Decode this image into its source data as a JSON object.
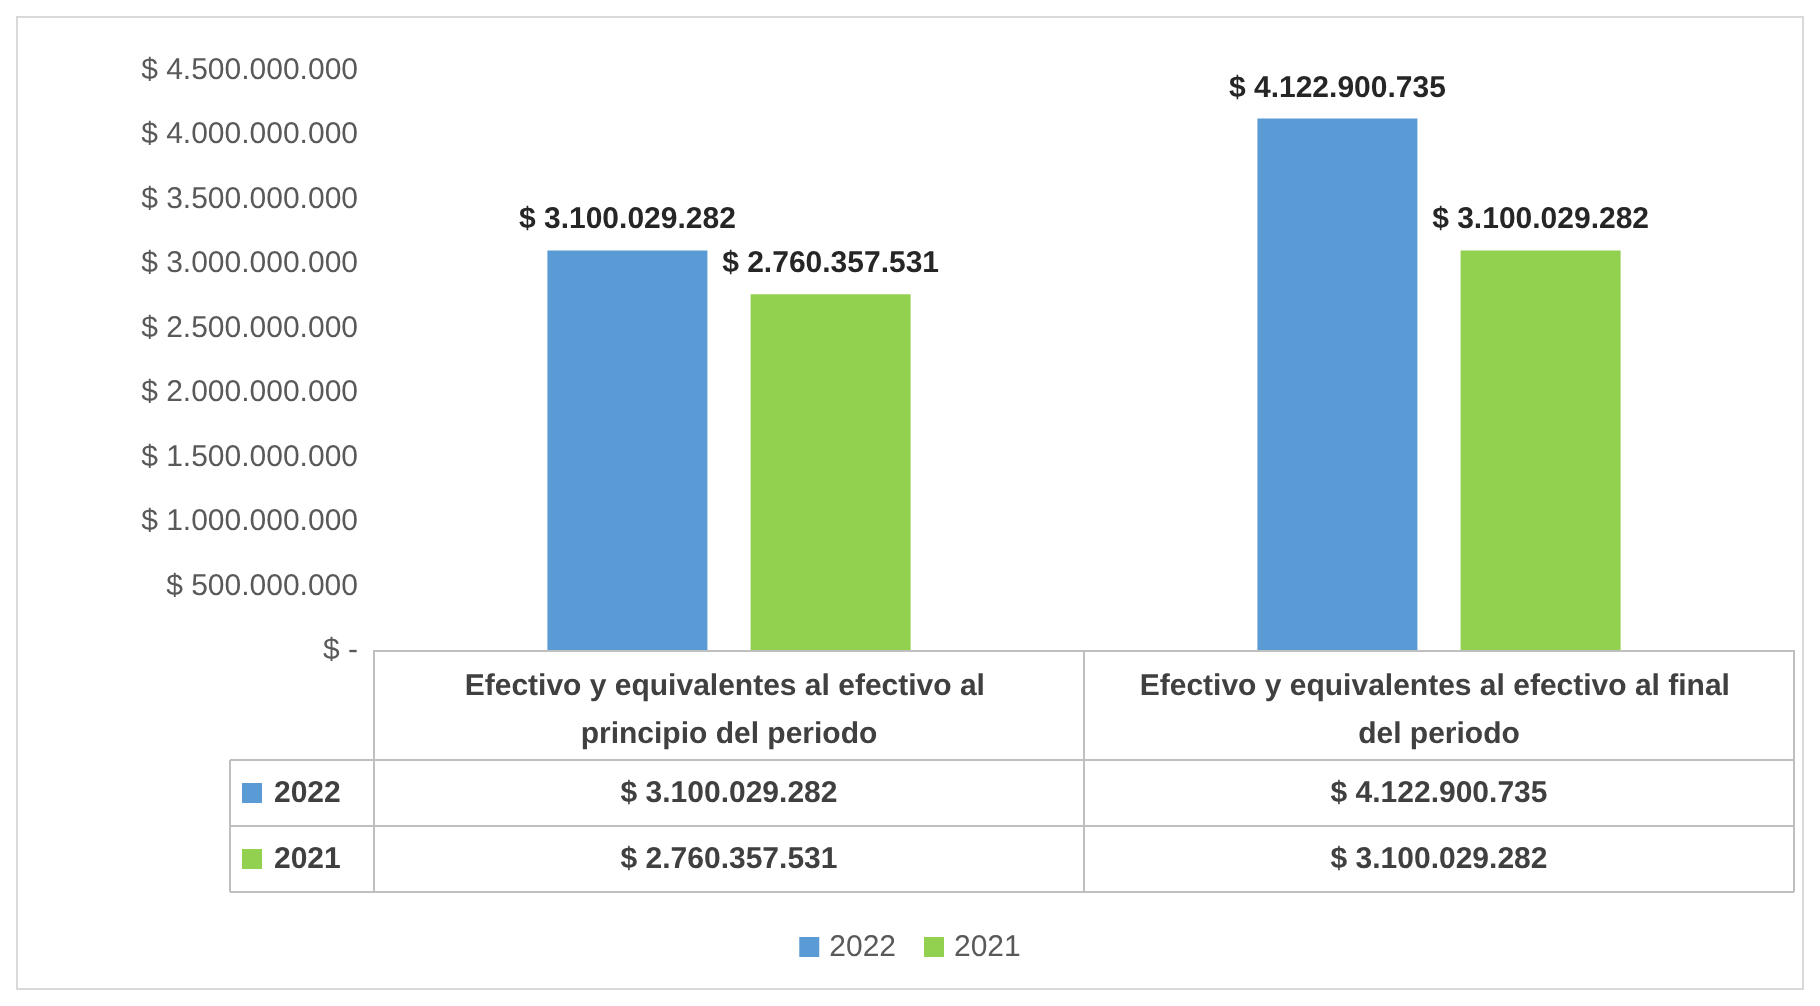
{
  "chart_data": {
    "type": "bar",
    "categories": [
      "Efectivo y equivalentes al efectivo al principio del periodo",
      "Efectivo y equivalentes al efectivo al final del periodo"
    ],
    "series": [
      {
        "name": "2022",
        "color": "#5b9bd5",
        "values": [
          3100029282,
          4122900735
        ],
        "value_labels": [
          "$ 3.100.029.282",
          "$ 4.122.900.735"
        ]
      },
      {
        "name": "2021",
        "color": "#92d050",
        "values": [
          2760357531,
          3100029282
        ],
        "value_labels": [
          "$ 2.760.357.531",
          "$ 3.100.029.282"
        ]
      }
    ],
    "ylim": [
      0,
      4500000000
    ],
    "yticks": [
      {
        "value": 0,
        "label": "$ -"
      },
      {
        "value": 500000000,
        "label": "$ 500.000.000"
      },
      {
        "value": 1000000000,
        "label": "$ 1.000.000.000"
      },
      {
        "value": 1500000000,
        "label": "$ 1.500.000.000"
      },
      {
        "value": 2000000000,
        "label": "$ 2.000.000.000"
      },
      {
        "value": 2500000000,
        "label": "$ 2.500.000.000"
      },
      {
        "value": 3000000000,
        "label": "$ 3.000.000.000"
      },
      {
        "value": 3500000000,
        "label": "$ 3.500.000.000"
      },
      {
        "value": 4000000000,
        "label": "$ 4.000.000.000"
      },
      {
        "value": 4500000000,
        "label": "$ 4.500.000.000"
      }
    ],
    "grid": false,
    "legend": "bottom"
  }
}
